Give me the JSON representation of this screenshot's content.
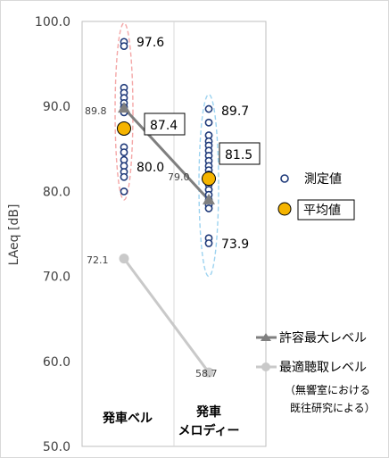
{
  "chart_data": {
    "type": "scatter",
    "ylabel": "LAeq [dB]",
    "ylim": [
      50,
      100
    ],
    "yticks": [
      "100.0",
      "90.0",
      "80.0",
      "70.0",
      "60.0",
      "50.0"
    ],
    "categories": [
      {
        "label": "発車ベル"
      },
      {
        "label_lines": [
          "発車",
          "メロディー"
        ]
      }
    ],
    "measured": {
      "name": "測定値",
      "points": [
        {
          "category": 0,
          "values": [
            97.6,
            97.1,
            92.2,
            91.6,
            91.0,
            90.4,
            89.9,
            89.3,
            85.2,
            84.6,
            83.7,
            83.0,
            82.3,
            81.7,
            80.0
          ]
        },
        {
          "category": 1,
          "values": [
            89.7,
            88.1,
            86.6,
            85.9,
            85.4,
            84.8,
            84.2,
            83.6,
            83.0,
            82.5,
            82.0,
            81.4,
            80.8,
            80.2,
            79.6,
            79.0,
            78.4,
            78.0,
            74.5,
            73.9
          ]
        }
      ]
    },
    "mean": {
      "name": "平均値",
      "values": [
        87.4,
        81.5
      ]
    },
    "max_allowed": {
      "name": "許容最大レベル",
      "values": [
        89.8,
        79.0
      ]
    },
    "optimal": {
      "name": "最適聴取レベル",
      "note_lines": [
        "（無響室における",
        "既往研究による）"
      ],
      "values": [
        72.1,
        58.7
      ]
    },
    "annotations": {
      "max_label": "97.6",
      "min_labels": [
        "80.0",
        "73.9"
      ],
      "max_label_2": "89.7",
      "mean_labels": [
        "87.4",
        "81.5"
      ],
      "allowed_labels": [
        "89.8",
        "79.0"
      ],
      "optimal_labels": [
        "72.1",
        "58.7"
      ]
    },
    "colors": {
      "measured_stroke": "#1f3a7a",
      "mean_fill": "#f5b400",
      "allowed_line": "#7f7f7f",
      "optimal_line": "#c9c9c9",
      "ellipse_bell": "#f4a7a7",
      "ellipse_melody": "#9dd3f0"
    },
    "grid": "x-only"
  }
}
